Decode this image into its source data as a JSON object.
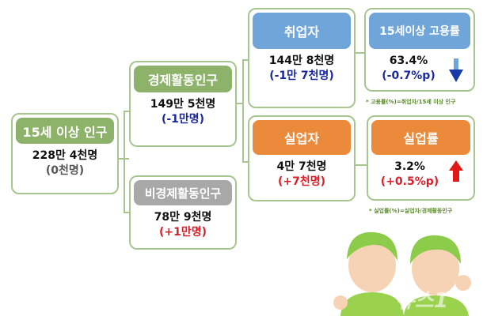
{
  "total": {
    "label": "15세 이상 인구",
    "value": "228만 4천명",
    "change": "(0천명)"
  },
  "active": {
    "label": "경제활동인구",
    "value": "149만 5천명",
    "change": "(-1만명)"
  },
  "inactive": {
    "label": "비경제활동인구",
    "value": "78만 9천명",
    "change": "(+1만명)"
  },
  "employed": {
    "label": "취업자",
    "value": "144만 8천명",
    "change": "(-1만 7천명)"
  },
  "unemployed": {
    "label": "실업자",
    "value": "4만 7천명",
    "change": "(+7천명)"
  },
  "employment_rate": {
    "label": "15세이상 고용률",
    "value": "63.4%",
    "change": "(-0.7%p)",
    "trend": "down",
    "note": "* 고용률(%)=취업자/15세 이상 인구"
  },
  "unemployment_rate": {
    "label": "실업률",
    "value": "3.2%",
    "change": "(+0.5%p)",
    "trend": "up",
    "note": "* 실업률(%)=실업자/경제활동인구"
  },
  "watermark": "뉴스1",
  "colors": {
    "green": "#8db36a",
    "blue": "#6fa5d8",
    "orange": "#ec8a3c",
    "gray": "#a8a8a8",
    "decrease": "#1a2a9c",
    "increase": "#d8202a"
  }
}
